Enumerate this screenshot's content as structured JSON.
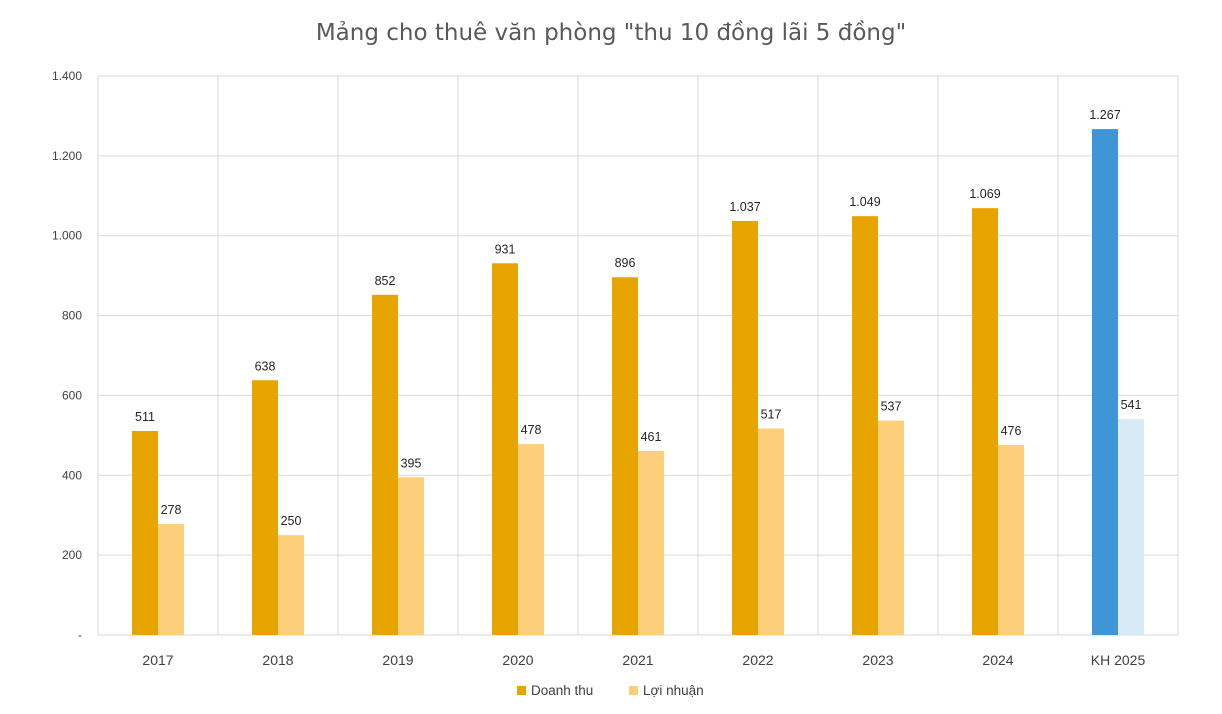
{
  "chart_data": {
    "type": "bar",
    "title": "Mảng cho thuê văn phòng \"thu 10 đồng lãi 5 đồng\"",
    "categories": [
      "2017",
      "2018",
      "2019",
      "2020",
      "2021",
      "2022",
      "2023",
      "2024",
      "KH 2025"
    ],
    "series": [
      {
        "name": "Doanh thu",
        "values": [
          511,
          638,
          852,
          931,
          896,
          1037,
          1049,
          1069,
          1267
        ],
        "labels": [
          "511",
          "638",
          "852",
          "931",
          "896",
          "1.037",
          "1.049",
          "1.069",
          "1.267"
        ],
        "color": "#E8A400",
        "highlight_color": "#3E96D6"
      },
      {
        "name": "Lợi nhuận",
        "values": [
          278,
          250,
          395,
          478,
          461,
          517,
          537,
          476,
          541
        ],
        "labels": [
          "278",
          "250",
          "395",
          "478",
          "461",
          "517",
          "537",
          "476",
          "541"
        ],
        "color": "#FDCF7A",
        "highlight_color": "#D9EAF7"
      }
    ],
    "highlight_category": "KH 2025",
    "ylim": [
      0,
      1400
    ],
    "yticks": [
      0,
      200,
      400,
      600,
      800,
      1000,
      1200,
      1400
    ],
    "ytick_labels": [
      "-",
      "200",
      "400",
      "600",
      "800",
      "1.000",
      "1.200",
      "1.400"
    ],
    "grid": true,
    "legend_position": "bottom"
  }
}
